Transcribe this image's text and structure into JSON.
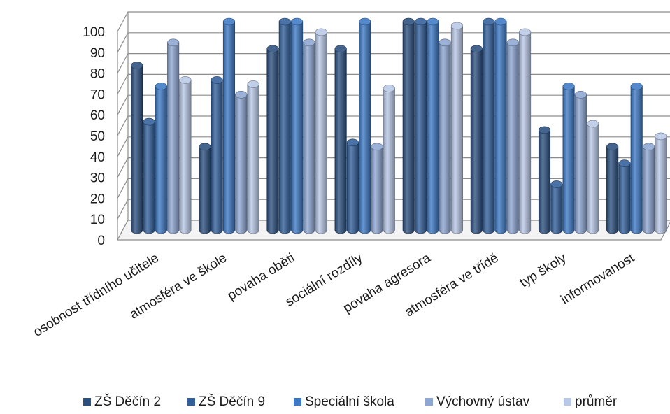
{
  "chart_data": {
    "type": "bar",
    "style": "3d-cylinder",
    "title": "",
    "xlabel": "",
    "ylabel": "",
    "ylim": [
      0,
      100
    ],
    "yticks": [
      0,
      10,
      20,
      30,
      40,
      50,
      60,
      70,
      80,
      90,
      100
    ],
    "grid": true,
    "legend_position": "bottom",
    "categories": [
      "osobnost třídního učitele",
      "atmosféra ve škole",
      "povaha oběti",
      "sociální rozdíly",
      "povaha agresora",
      "atmosféra ve třídě",
      "typ školy",
      "informovanost"
    ],
    "series": [
      {
        "name": "ZŠ Děčín 2",
        "color": "#2b4f7e",
        "values": [
          79,
          40,
          87,
          87,
          100,
          87,
          48,
          40
        ]
      },
      {
        "name": "ZŠ Děčín 9",
        "color": "#325f9a",
        "values": [
          52,
          72,
          100,
          42,
          100,
          100,
          22,
          32
        ]
      },
      {
        "name": "Speciální škola",
        "color": "#3d79c4",
        "values": [
          69,
          100,
          100,
          100,
          100,
          100,
          69,
          69
        ]
      },
      {
        "name": "Výchovný ústav",
        "color": "#8ea6d2",
        "values": [
          90,
          65,
          90,
          40,
          90,
          90,
          65,
          40
        ]
      },
      {
        "name": "průměr",
        "color": "#b8c8e6",
        "values": [
          72,
          70,
          95,
          68,
          98,
          95,
          51,
          45
        ]
      }
    ]
  }
}
